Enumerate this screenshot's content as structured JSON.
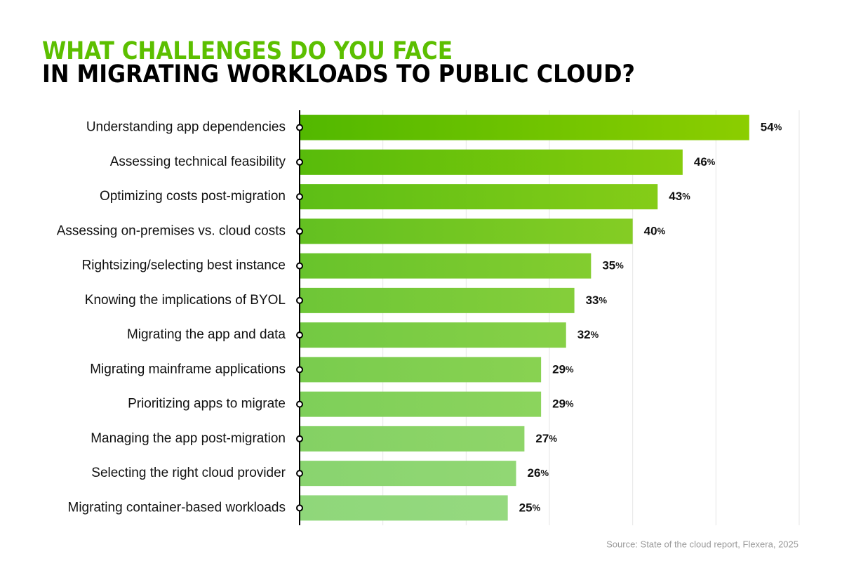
{
  "chart_data": {
    "type": "hbar",
    "title": [
      "WHAT CHALLENGES DO YOU FACE",
      "IN MIGRATING WORKLOADS TO PUBLIC CLOUD?"
    ],
    "title_colors": [
      "#5cbf00",
      "#000000"
    ],
    "categories": [
      "Understanding app dependencies",
      "Assessing technical feasibility",
      "Optimizing costs post-migration",
      "Assessing on-premises vs. cloud costs",
      "Rightsizing/selecting best instance",
      "Knowing the implications of BYOL",
      "Migrating the app and data",
      "Migrating mainframe applications",
      "Prioritizing apps to migrate",
      "Managing the app post-migration",
      "Selecting the right cloud provider",
      "Migrating container-based workloads"
    ],
    "values": [
      54,
      46,
      43,
      40,
      35,
      33,
      32,
      29,
      29,
      27,
      26,
      25
    ],
    "value_labels": [
      "54%",
      "46%",
      "43%",
      "40%",
      "35%",
      "33%",
      "32%",
      "29%",
      "29%",
      "27%",
      "26%",
      "25%"
    ],
    "gradient": {
      "top": [
        "#52b800",
        "#92d000"
      ],
      "bottom": [
        "#8fd77a",
        "#9ddc86"
      ]
    },
    "xlim": [
      0,
      60
    ],
    "xticks": [
      10,
      20,
      30,
      40,
      50,
      60
    ],
    "grid": true,
    "source": "Source: State of the cloud report, Flexera, 2025"
  }
}
